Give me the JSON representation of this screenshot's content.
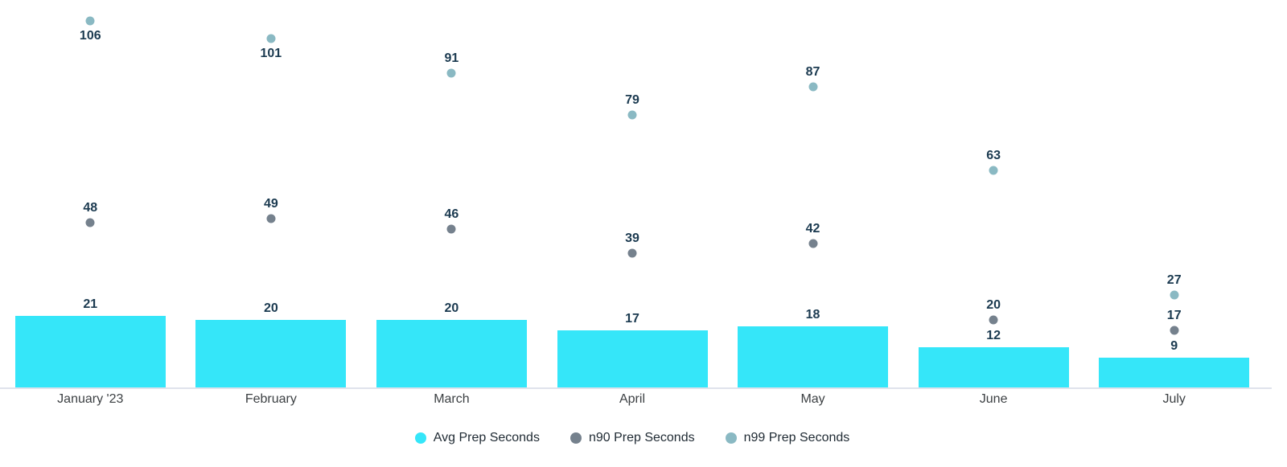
{
  "chart_data": {
    "type": "bar",
    "subtype": "bar-with-scatter-overlay",
    "title": "",
    "xlabel": "",
    "ylabel": "",
    "categories": [
      "January '23",
      "February",
      "March",
      "April",
      "May",
      "June",
      "July"
    ],
    "series": [
      {
        "name": "Avg Prep Seconds",
        "type": "bar",
        "color": "#35e6f9",
        "values": [
          21,
          20,
          20,
          17,
          18,
          12,
          9
        ]
      },
      {
        "name": "n90 Prep Seconds",
        "type": "scatter",
        "color": "#75818d",
        "values": [
          48,
          49,
          46,
          39,
          42,
          20,
          17
        ]
      },
      {
        "name": "n99 Prep Seconds",
        "type": "scatter",
        "color": "#8ab9c3",
        "values": [
          106,
          101,
          91,
          79,
          87,
          63,
          27
        ]
      }
    ],
    "ylim": [
      0,
      112
    ],
    "grid": false,
    "value_labels": true,
    "legend_position": "bottom",
    "x_axis_visible": true,
    "y_axis_visible": false
  },
  "colors": {
    "background": "#ffffff",
    "bar": "#35e6f9",
    "n90_point": "#75818d",
    "n99_point": "#8ab9c3",
    "value_label_text": "#1b3a50",
    "axis_label_text": "#3c4043",
    "legend_text": "#1f2a33",
    "axis_line": "#dfe2ec"
  },
  "legend": {
    "items": [
      {
        "label": "Avg Prep Seconds",
        "swatch_color": "#35e6f9",
        "swatch": "circle"
      },
      {
        "label": "n90 Prep Seconds",
        "swatch_color": "#75818d",
        "swatch": "circle"
      },
      {
        "label": "n99 Prep Seconds",
        "swatch_color": "#8ab9c3",
        "swatch": "circle"
      }
    ]
  }
}
